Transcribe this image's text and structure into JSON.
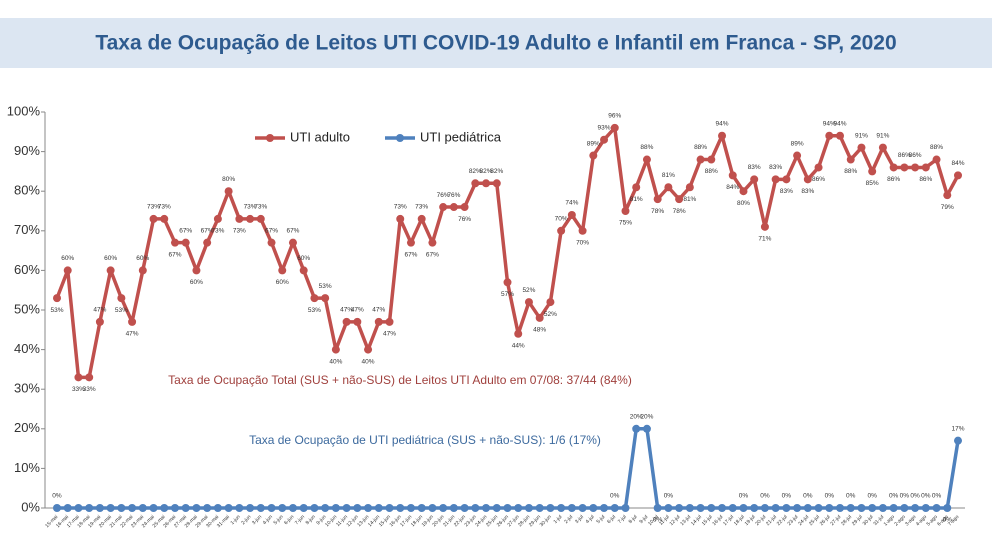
{
  "chart_data": {
    "type": "line",
    "title": "Taxa de Ocupação de Leitos UTI COVID-19 Adulto e Infantil em Franca - SP, 2020",
    "categories": [
      "15-mai",
      "16-mai",
      "17-mai",
      "18-mai",
      "19-mai",
      "20-mai",
      "21-mai",
      "22-mai",
      "23-mai",
      "24-mai",
      "25-mai",
      "26-mai",
      "27-mai",
      "28-mai",
      "29-mai",
      "30-mai",
      "31-mai",
      "1-jun",
      "2-jun",
      "3-jun",
      "4-jun",
      "5-jun",
      "6-jun",
      "7-jun",
      "8-jun",
      "9-jun",
      "10-jun",
      "11-jun",
      "12-jun",
      "13-jun",
      "14-jun",
      "15-jun",
      "16-jun",
      "17-jun",
      "18-jun",
      "19-jun",
      "20-jun",
      "21-jun",
      "22-jun",
      "23-jun",
      "24-jun",
      "25-jun",
      "26-jun",
      "27-jun",
      "28-jun",
      "29-jun",
      "30-jun",
      "1-jul",
      "2-jul",
      "3-jul",
      "4-jul",
      "5-jul",
      "6-jul",
      "7-jul",
      "8-jul",
      "9-jul",
      "10-jul",
      "11-jul",
      "12-jul",
      "13-jul",
      "14-jul",
      "15-jul",
      "16-jul",
      "17-jul",
      "18-jul",
      "19-jul",
      "20-jul",
      "21-jul",
      "22-jul",
      "23-jul",
      "24-jul",
      "25-jul",
      "26-jul",
      "27-jul",
      "28-jul",
      "29-jul",
      "30-jul",
      "31-jul",
      "1-ago",
      "2-ago",
      "3-ago",
      "4-ago",
      "5-ago",
      "6-ago",
      "7-ago"
    ],
    "series": [
      {
        "name": "UTI adulto",
        "color": "#c0504d",
        "values": [
          53,
          60,
          33,
          33,
          47,
          60,
          53,
          47,
          60,
          73,
          73,
          67,
          67,
          60,
          67,
          73,
          80,
          73,
          73,
          73,
          67,
          60,
          67,
          60,
          53,
          53,
          40,
          47,
          47,
          40,
          47,
          47,
          73,
          67,
          73,
          67,
          76,
          76,
          76,
          82,
          82,
          82,
          57,
          44,
          52,
          48,
          52,
          70,
          74,
          70,
          89,
          93,
          96,
          75,
          81,
          88,
          78,
          81,
          78,
          81,
          88,
          88,
          94,
          84,
          80,
          83,
          71,
          83,
          83,
          89,
          83,
          86,
          94,
          94,
          88,
          91,
          85,
          91,
          86,
          86,
          86,
          86,
          88,
          79,
          84
        ],
        "value_labels": [
          "53%",
          "60%",
          "33%",
          "33%",
          "47%",
          "60%",
          "53%",
          "47%",
          "60%",
          "73%",
          "73%",
          "67%",
          "67%",
          "60%",
          "67%",
          "73%",
          "80%",
          "73%",
          "73%",
          "73%",
          "67%",
          "60%",
          "67%",
          "60%",
          "53%",
          "53%",
          "40%",
          "47%",
          "47%",
          "40%",
          "47%",
          "47%",
          "73%",
          "67%",
          "73%",
          "67%",
          "76%",
          "76%",
          "76%",
          "82%",
          "82%",
          "82%",
          "57%",
          "44%",
          "52%",
          "48%",
          "52%",
          "70%",
          "74%",
          "70%",
          "89%",
          "93%",
          "96%",
          "75%",
          "81%",
          "88%",
          "78%",
          "81%",
          "78%",
          "81%",
          "88%",
          "88%",
          "94%",
          "84%",
          "80%",
          "83%",
          "71%",
          "83%",
          "83%",
          "89%",
          "83%",
          "86%",
          "94%",
          "94%",
          "88%",
          "91%",
          "85%",
          "91%",
          "86%",
          "86%",
          "86%",
          "86%",
          "88%",
          "79%",
          "84%"
        ]
      },
      {
        "name": "UTI pediátrica",
        "color": "#4f81bd",
        "values": [
          0,
          0,
          0,
          0,
          0,
          0,
          0,
          0,
          0,
          0,
          0,
          0,
          0,
          0,
          0,
          0,
          0,
          0,
          0,
          0,
          0,
          0,
          0,
          0,
          0,
          0,
          0,
          0,
          0,
          0,
          0,
          0,
          0,
          0,
          0,
          0,
          0,
          0,
          0,
          0,
          0,
          0,
          0,
          0,
          0,
          0,
          0,
          0,
          0,
          0,
          0,
          0,
          0,
          0,
          20,
          20,
          0,
          0,
          0,
          0,
          0,
          0,
          0,
          0,
          0,
          0,
          0,
          0,
          0,
          0,
          0,
          0,
          0,
          0,
          0,
          0,
          0,
          0,
          0,
          0,
          0,
          0,
          0,
          0,
          17
        ],
        "value_labels": [
          "0%",
          null,
          null,
          null,
          null,
          null,
          null,
          null,
          null,
          null,
          null,
          null,
          null,
          null,
          null,
          null,
          null,
          null,
          null,
          null,
          null,
          null,
          null,
          null,
          null,
          null,
          null,
          null,
          null,
          null,
          null,
          null,
          null,
          null,
          null,
          null,
          null,
          null,
          null,
          null,
          null,
          null,
          null,
          null,
          null,
          null,
          null,
          null,
          null,
          null,
          null,
          null,
          "0%",
          null,
          "20%",
          "20%",
          "0%",
          "0%",
          null,
          null,
          null,
          null,
          null,
          null,
          "0%",
          null,
          "0%",
          null,
          "0%",
          null,
          "0%",
          null,
          "0%",
          null,
          "0%",
          null,
          "0%",
          null,
          "0%",
          "0%",
          "0%",
          "0%",
          "0%",
          "0%",
          "17%"
        ]
      }
    ],
    "ylim": [
      0,
      100
    ],
    "yticks": [
      {
        "value": 0,
        "label": "0%"
      },
      {
        "value": 10,
        "label": "10%"
      },
      {
        "value": 20,
        "label": "20%"
      },
      {
        "value": 30,
        "label": "30%"
      },
      {
        "value": 40,
        "label": "40%"
      },
      {
        "value": 50,
        "label": "50%"
      },
      {
        "value": 60,
        "label": "60%"
      },
      {
        "value": 70,
        "label": "70%"
      },
      {
        "value": 80,
        "label": "80%"
      },
      {
        "value": 90,
        "label": "90%"
      },
      {
        "value": 100,
        "label": "100%"
      }
    ],
    "grid": false,
    "legend": "top",
    "annotations": [
      "Taxa de Ocupação Total (SUS + não-SUS) de  Leitos UTI  Adulto em 07/08:  37/44 (84%)",
      "Taxa de Ocupação de UTI pediátrica (SUS + não-SUS): 1/6 (17%)"
    ]
  }
}
